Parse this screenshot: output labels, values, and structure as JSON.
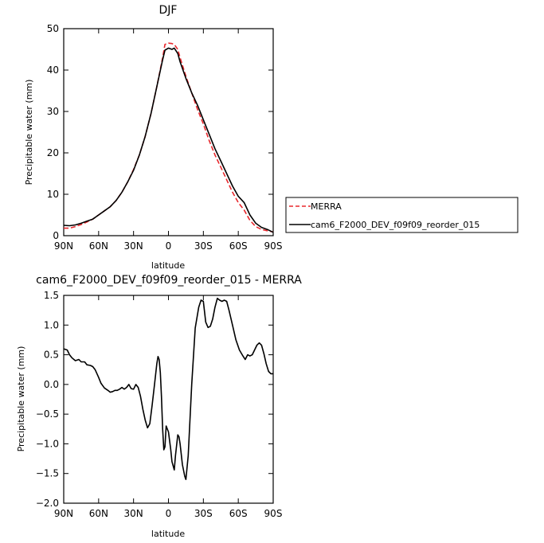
{
  "chart_data": [
    {
      "type": "line",
      "title": "DJF",
      "xlabel": "latitude",
      "ylabel": "Precipitable water (mm)",
      "x_ticks": [
        {
          "value": -90,
          "label": "90N"
        },
        {
          "value": -60,
          "label": "60N"
        },
        {
          "value": -30,
          "label": "30N"
        },
        {
          "value": 0,
          "label": "0"
        },
        {
          "value": 30,
          "label": "30S"
        },
        {
          "value": 60,
          "label": "60S"
        },
        {
          "value": 90,
          "label": "90S"
        }
      ],
      "xlim": [
        -90,
        90
      ],
      "ylim": [
        0,
        50
      ],
      "y_ticks": [
        0,
        10,
        20,
        30,
        40,
        50
      ],
      "legend": {
        "placement": "right"
      },
      "series": [
        {
          "name": "MERRA",
          "color": "#e8282d",
          "style": "dashed",
          "x": [
            -90,
            -85,
            -80,
            -75,
            -70,
            -65,
            -60,
            -55,
            -50,
            -45,
            -40,
            -35,
            -30,
            -25,
            -20,
            -15,
            -10,
            -5,
            -3,
            0,
            3,
            5,
            8,
            10,
            15,
            20,
            25,
            30,
            35,
            40,
            45,
            50,
            55,
            60,
            65,
            70,
            75,
            80,
            85,
            90
          ],
          "y": [
            1.8,
            1.8,
            2.2,
            2.7,
            3.3,
            4.0,
            5.0,
            6.0,
            7.0,
            8.5,
            10.5,
            13.0,
            16.0,
            19.5,
            24.0,
            29.5,
            36.0,
            43.0,
            46.2,
            46.5,
            46.4,
            46.2,
            45.0,
            43.0,
            38.5,
            34.5,
            30.5,
            27.0,
            23.0,
            19.5,
            16.5,
            13.5,
            10.5,
            8.0,
            6.2,
            3.7,
            2.2,
            1.5,
            1.2,
            0.9
          ]
        },
        {
          "name": "cam6_F2000_DEV_f09f09_reorder_015",
          "color": "#000000",
          "style": "solid",
          "x": [
            -90,
            -85,
            -80,
            -75,
            -70,
            -65,
            -60,
            -55,
            -50,
            -45,
            -40,
            -35,
            -30,
            -25,
            -20,
            -15,
            -10,
            -5,
            -3,
            0,
            3,
            5,
            8,
            10,
            15,
            20,
            25,
            30,
            35,
            40,
            45,
            50,
            55,
            60,
            65,
            70,
            75,
            80,
            85,
            90
          ],
          "y": [
            2.5,
            2.4,
            2.6,
            3.0,
            3.5,
            4.0,
            5.0,
            6.0,
            7.0,
            8.5,
            10.5,
            13.0,
            15.8,
            19.5,
            24.0,
            29.5,
            36.0,
            42.5,
            44.8,
            45.3,
            45.0,
            45.3,
            44.0,
            42.0,
            38.0,
            34.5,
            31.5,
            28.0,
            24.5,
            21.0,
            18.0,
            15.0,
            12.0,
            9.5,
            8.0,
            5.0,
            3.0,
            2.0,
            1.5,
            0.8
          ]
        }
      ]
    },
    {
      "type": "line",
      "title": "cam6_F2000_DEV_f09f09_reorder_015 - MERRA",
      "xlabel": "latitude",
      "ylabel": "Precipitable water (mm)",
      "x_ticks": [
        {
          "value": -90,
          "label": "90N"
        },
        {
          "value": -60,
          "label": "60N"
        },
        {
          "value": -30,
          "label": "30N"
        },
        {
          "value": 0,
          "label": "0"
        },
        {
          "value": 30,
          "label": "30S"
        },
        {
          "value": 60,
          "label": "60S"
        },
        {
          "value": 90,
          "label": "90S"
        }
      ],
      "xlim": [
        -90,
        90
      ],
      "ylim": [
        -2.0,
        1.5
      ],
      "y_ticks": [
        -2.0,
        -1.5,
        -1.0,
        -0.5,
        0.0,
        0.5,
        1.0,
        1.5
      ],
      "y_tick_labels": [
        "−2.0",
        "−1.5",
        "−1.0",
        "−0.5",
        "0.0",
        "0.5",
        "1.0",
        "1.5"
      ],
      "series": [
        {
          "color": "#000000",
          "style": "solid",
          "x": [
            -90,
            -87,
            -85,
            -83,
            -80,
            -77,
            -75,
            -72,
            -70,
            -67,
            -65,
            -63,
            -60,
            -58,
            -55,
            -52,
            -50,
            -48,
            -46,
            -44,
            -42,
            -40,
            -38,
            -36,
            -34,
            -32,
            -30,
            -28,
            -26,
            -24,
            -22,
            -20,
            -18,
            -16,
            -14,
            -12,
            -10,
            -9,
            -8,
            -7,
            -6,
            -5,
            -4,
            -3,
            -2,
            0,
            2,
            3,
            5,
            6,
            8,
            9,
            10,
            12,
            14,
            15,
            17,
            20,
            23,
            26,
            28,
            30,
            32,
            34,
            36,
            38,
            40,
            42,
            44,
            46,
            48,
            50,
            52,
            55,
            58,
            61,
            64,
            66,
            68,
            70,
            72,
            74,
            76,
            78,
            80,
            82,
            84,
            86,
            88,
            90
          ],
          "y": [
            0.6,
            0.58,
            0.5,
            0.45,
            0.4,
            0.42,
            0.38,
            0.38,
            0.33,
            0.32,
            0.3,
            0.25,
            0.12,
            0.02,
            -0.06,
            -0.1,
            -0.13,
            -0.12,
            -0.1,
            -0.1,
            -0.08,
            -0.05,
            -0.08,
            -0.05,
            0.0,
            -0.07,
            -0.08,
            0.0,
            -0.05,
            -0.2,
            -0.42,
            -0.6,
            -0.73,
            -0.66,
            -0.35,
            0.0,
            0.35,
            0.47,
            0.42,
            0.2,
            -0.2,
            -0.75,
            -1.1,
            -1.05,
            -0.7,
            -0.8,
            -1.1,
            -1.3,
            -1.44,
            -1.2,
            -0.85,
            -0.88,
            -1.0,
            -1.35,
            -1.55,
            -1.6,
            -1.2,
            0.0,
            0.95,
            1.3,
            1.42,
            1.4,
            1.05,
            0.96,
            0.98,
            1.1,
            1.3,
            1.45,
            1.42,
            1.4,
            1.42,
            1.4,
            1.25,
            1.0,
            0.75,
            0.58,
            0.48,
            0.42,
            0.5,
            0.48,
            0.5,
            0.58,
            0.66,
            0.7,
            0.66,
            0.52,
            0.35,
            0.22,
            0.18,
            0.18
          ]
        }
      ]
    }
  ]
}
